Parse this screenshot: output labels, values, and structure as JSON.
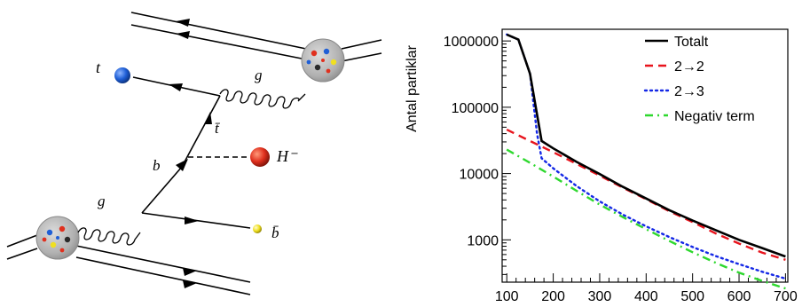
{
  "diagram": {
    "labels": {
      "t": "t",
      "g_top": "g",
      "tbar": "t̄",
      "H": "H⁻",
      "b": "b",
      "g_bottom": "g",
      "bbar": "b̄"
    },
    "colors": {
      "t": "#1f5fd6",
      "H": "#e0301e",
      "bbar": "#f0e020",
      "proton": "#b8b8b8"
    }
  },
  "chart_data": {
    "type": "line",
    "title": "",
    "xlabel": "",
    "ylabel": "Antal partiklar",
    "xlim": [
      90,
      705
    ],
    "ylim": [
      230,
      1500000
    ],
    "yscale": "log",
    "xticks": [
      100,
      200,
      300,
      400,
      500,
      600,
      700
    ],
    "yticks": [
      1000,
      10000,
      100000,
      1000000
    ],
    "ytick_labels": [
      "1000",
      "10000",
      "100000",
      "1000000"
    ],
    "grid": false,
    "legend_position": "top-right",
    "series": [
      {
        "name": "Totalt",
        "color": "#000000",
        "style": "solid",
        "x": [
          100,
          125,
          150,
          175,
          200,
          250,
          300,
          350,
          400,
          450,
          500,
          550,
          600,
          650,
          700
        ],
        "y": [
          1250000,
          1050000,
          320000,
          31000,
          24000,
          15000,
          9800,
          6300,
          4200,
          2800,
          1950,
          1400,
          1000,
          750,
          560
        ]
      },
      {
        "name": "2→2",
        "color": "#e8141d",
        "style": "dashed",
        "x": [
          100,
          150,
          200,
          250,
          300,
          350,
          400,
          450,
          500,
          550,
          600,
          650,
          700
        ],
        "y": [
          46000,
          31000,
          21000,
          14000,
          9300,
          6100,
          4100,
          2700,
          1850,
          1250,
          880,
          640,
          500
        ]
      },
      {
        "name": "2→3",
        "color": "#1428e6",
        "style": "dotted",
        "x": [
          100,
          125,
          150,
          165,
          175,
          200,
          250,
          300,
          350,
          400,
          450,
          500,
          550,
          600,
          650,
          700
        ],
        "y": [
          1250000,
          1050000,
          320000,
          40000,
          17000,
          12000,
          6500,
          3800,
          2400,
          1600,
          1100,
          780,
          570,
          430,
          330,
          260
        ]
      },
      {
        "name": "Negativ term",
        "color": "#2ed82e",
        "style": "dashdot",
        "x": [
          100,
          150,
          200,
          250,
          300,
          350,
          400,
          450,
          500,
          550,
          600,
          650,
          700
        ],
        "y": [
          23000,
          14500,
          9000,
          5500,
          3400,
          2200,
          1450,
          960,
          650,
          450,
          320,
          240,
          185
        ]
      }
    ]
  }
}
